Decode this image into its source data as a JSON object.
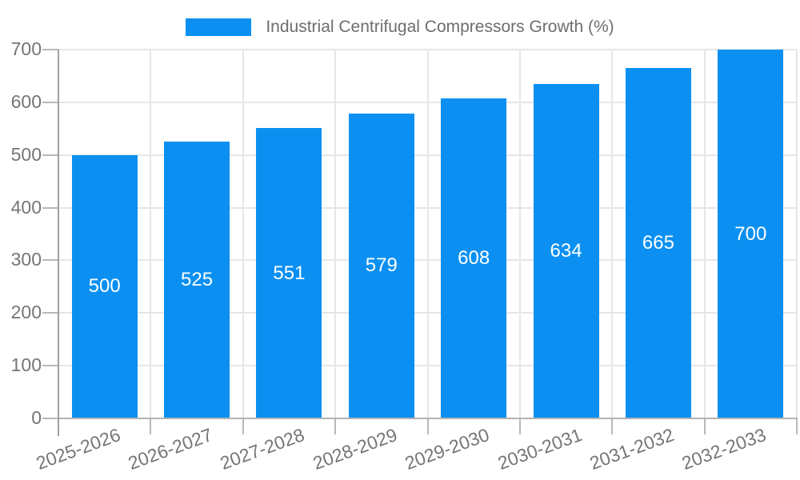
{
  "legend": {
    "label": "Industrial Centrifugal Compressors Growth (%)",
    "swatch_color": "#0b90f2"
  },
  "chart_data": {
    "type": "bar",
    "title": "Industrial Centrifugal Compressors Growth (%)",
    "categories": [
      "2025-2026",
      "2026-2027",
      "2027-2028",
      "2028-2029",
      "2029-2030",
      "2030-2031",
      "2031-2032",
      "2032-2033"
    ],
    "values": [
      500,
      525,
      551,
      579,
      608,
      634,
      665,
      700
    ],
    "xlabel": "",
    "ylabel": "",
    "ylim": [
      0,
      700
    ],
    "yticks": [
      0,
      100,
      200,
      300,
      400,
      500,
      600,
      700
    ],
    "grid": true,
    "legend_position": "top",
    "bar_color": "#0b90f2",
    "value_label_color": "#ffffff",
    "axis_label_color": "#757575",
    "legend_text_color": "#6e6e6e",
    "grid_color": "#e6e6e6",
    "tick_color": "#b8b8b8",
    "y_axis_line_color": "#a0a0a0",
    "x_axis_line_color": "#b3b3b3",
    "background_color": "#ffffff"
  }
}
